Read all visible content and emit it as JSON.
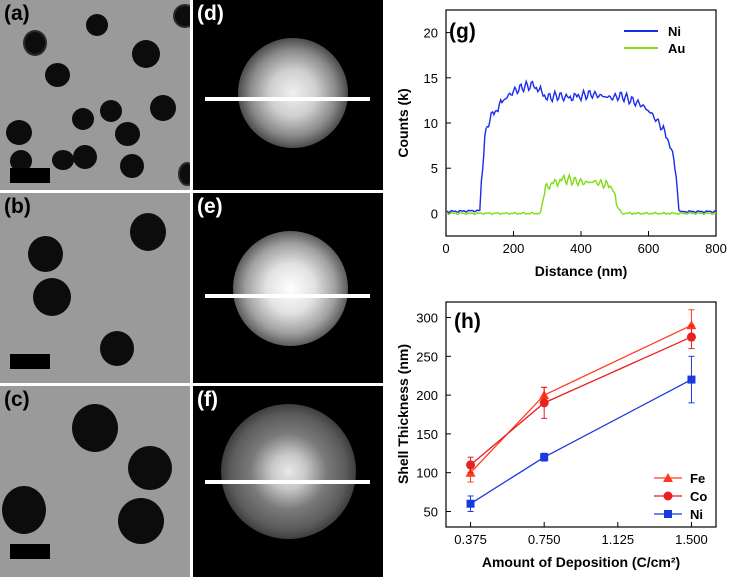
{
  "panels": {
    "a": "(a)",
    "b": "(b)",
    "c": "(c)",
    "d": "(d)",
    "e": "(e)",
    "f": "(f)",
    "g": "(g)",
    "h": "(h)"
  },
  "chart_data": [
    {
      "id": "g",
      "type": "line",
      "title": "(g)",
      "xlabel": "Distance (nm)",
      "ylabel": "Counts (k)",
      "xlim": [
        0,
        800
      ],
      "ylim": [
        -2.5,
        22.5
      ],
      "xticks": [
        0,
        200,
        400,
        600,
        800
      ],
      "yticks": [
        0,
        5,
        10,
        15,
        20
      ],
      "legend_position": "top-right",
      "series": [
        {
          "name": "Ni",
          "color": "#1a2bf0",
          "x": [
            0,
            100,
            105,
            115,
            130,
            150,
            170,
            200,
            230,
            260,
            280,
            300,
            330,
            360,
            400,
            430,
            460,
            490,
            520,
            550,
            580,
            610,
            640,
            660,
            675,
            685,
            690,
            700,
            800
          ],
          "y": [
            0.2,
            0.3,
            3.5,
            8.5,
            10.5,
            11.5,
            12.5,
            13.5,
            14.0,
            14.2,
            13.5,
            12.8,
            13.0,
            12.8,
            13.0,
            13.2,
            13.0,
            12.8,
            13.0,
            12.5,
            12.0,
            11.0,
            9.5,
            8.0,
            6.0,
            3.0,
            0.3,
            0.2,
            0.2
          ]
        },
        {
          "name": "Au",
          "color": "#7fdc14",
          "x": [
            0,
            280,
            285,
            295,
            310,
            330,
            350,
            380,
            410,
            440,
            470,
            490,
            495,
            505,
            520,
            800
          ],
          "y": [
            0,
            0,
            1.0,
            2.8,
            3.2,
            3.5,
            3.8,
            3.6,
            3.4,
            3.5,
            3.2,
            3.0,
            2.6,
            1.0,
            0,
            0
          ]
        }
      ]
    },
    {
      "id": "h",
      "type": "line",
      "title": "(h)",
      "xlabel": "Amount of Deposition (C/cm²)",
      "ylabel": "Shell Thickness (nm)",
      "categories": [
        "0.375",
        "0.750",
        "1.125",
        "1.500"
      ],
      "xlim": [
        0.25,
        1.625
      ],
      "ylim": [
        30,
        320
      ],
      "yticks": [
        50,
        100,
        150,
        200,
        250,
        300
      ],
      "legend_position": "bottom-right",
      "series": [
        {
          "name": "Fe",
          "color": "#ff3b1e",
          "marker": "triangle",
          "x": [
            0.375,
            0.75,
            1.5
          ],
          "values": [
            100,
            200,
            290
          ],
          "error": [
            12,
            10,
            20
          ]
        },
        {
          "name": "Co",
          "color": "#e82020",
          "marker": "circle",
          "x": [
            0.375,
            0.75,
            1.5
          ],
          "values": [
            110,
            190,
            275
          ],
          "error": [
            10,
            20,
            15
          ]
        },
        {
          "name": "Ni",
          "color": "#1a3ae0",
          "marker": "square",
          "x": [
            0.375,
            0.75,
            1.5
          ],
          "values": [
            60,
            120,
            220
          ],
          "error": [
            10,
            5,
            30
          ]
        }
      ]
    }
  ]
}
